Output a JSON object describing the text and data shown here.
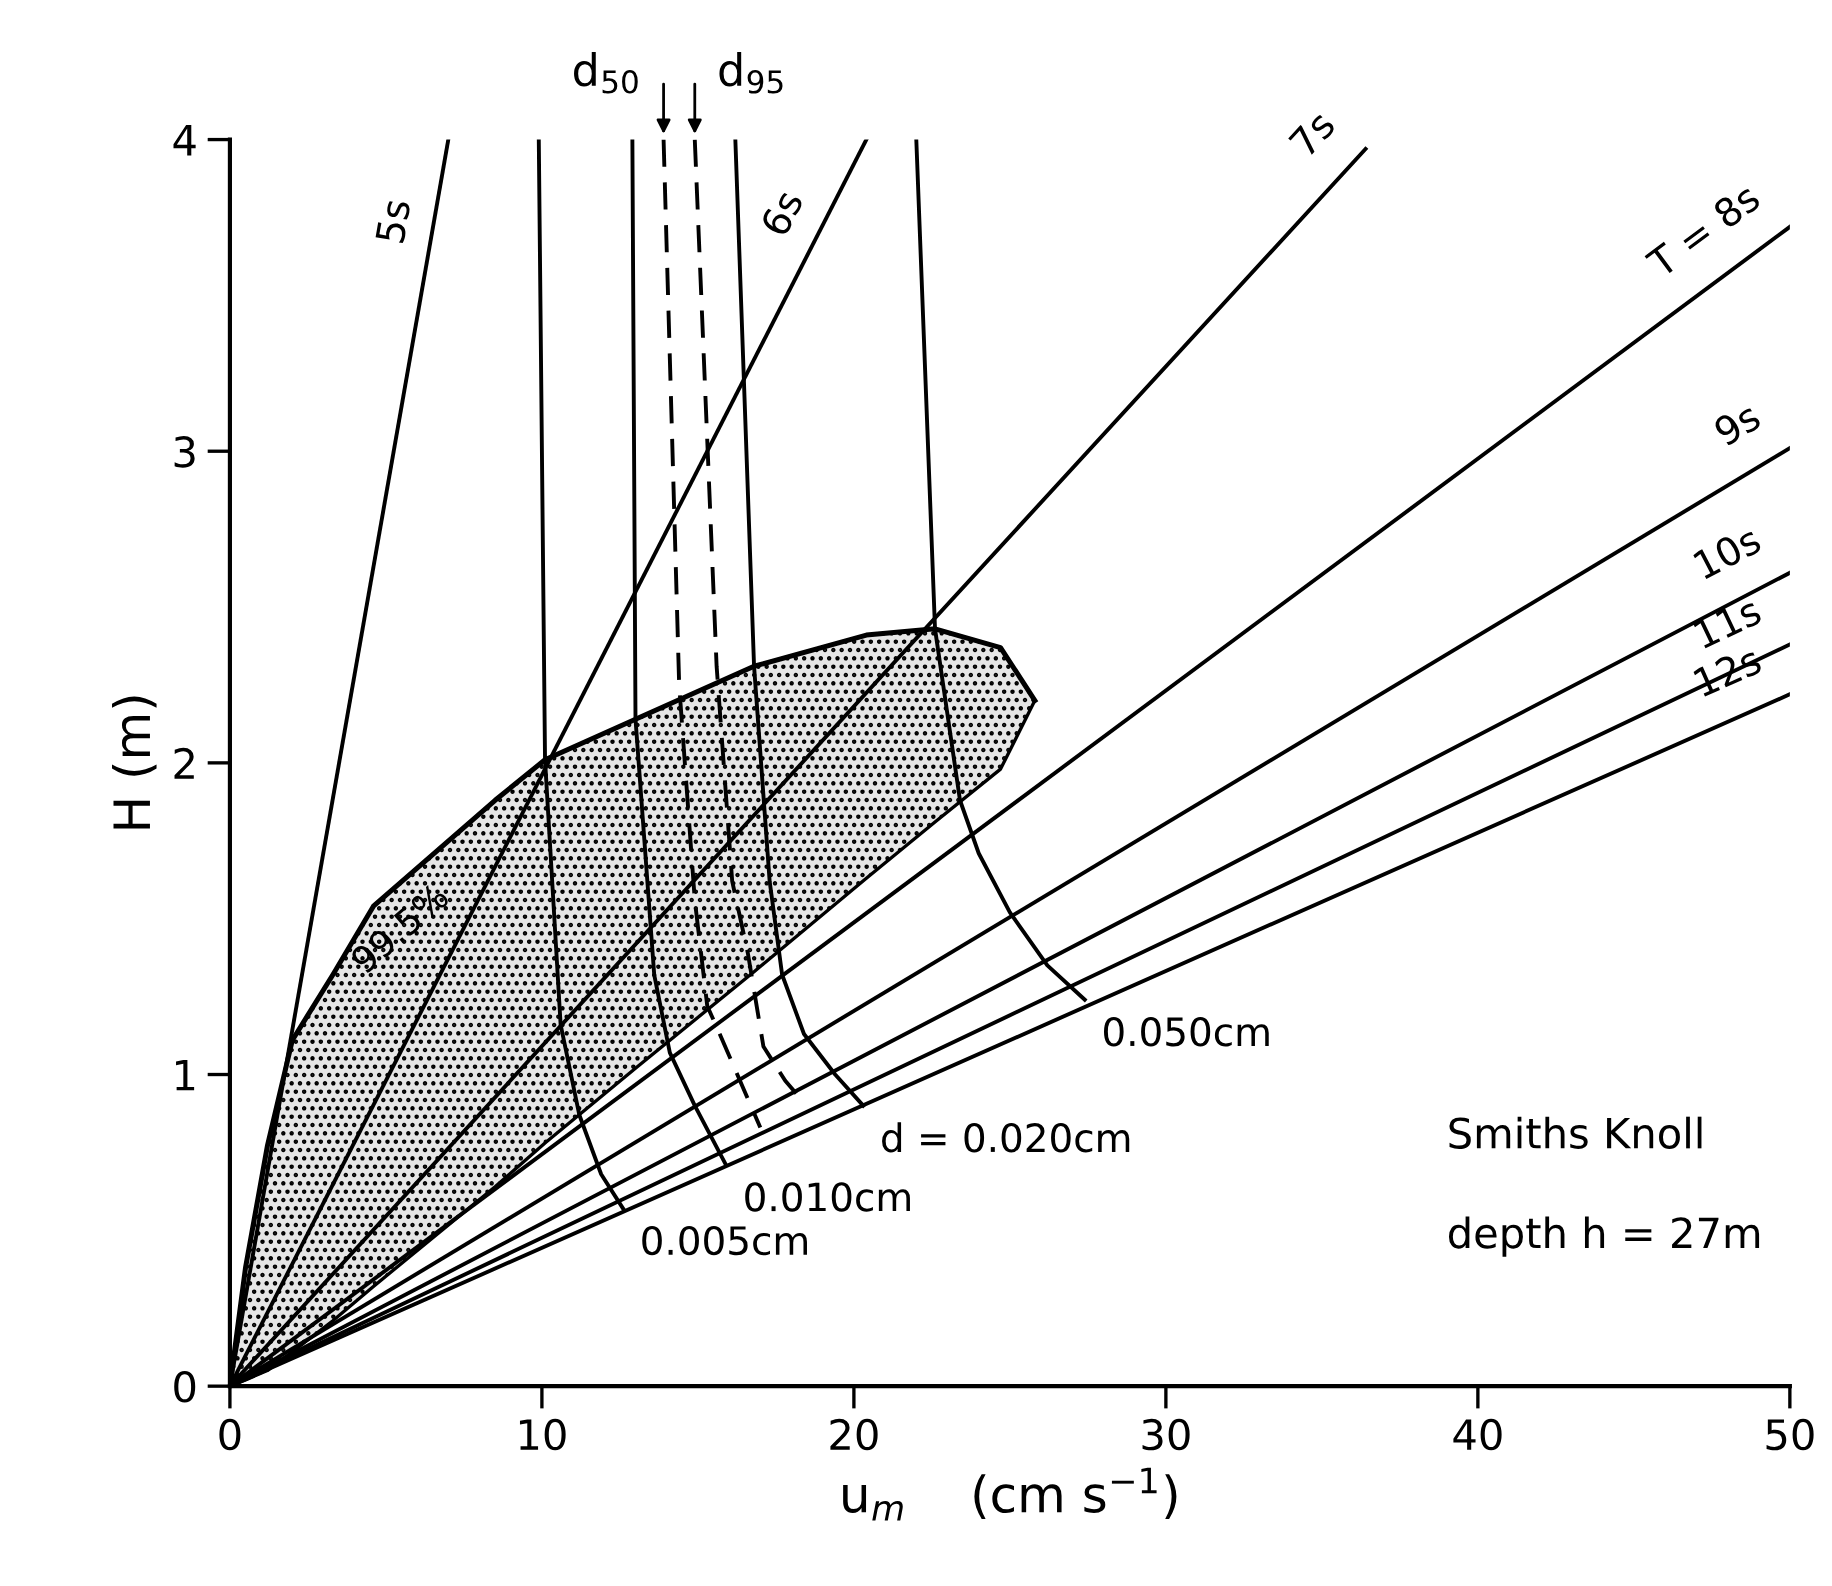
{
  "chart_data": {
    "type": "line",
    "xlabel": "u$_{m}$    (cm s$^{−1}$)",
    "ylabel": "H (m)",
    "xlim": [
      0,
      50
    ],
    "ylim": [
      0,
      4
    ],
    "xticks": [
      0,
      10,
      20,
      30,
      40,
      50
    ],
    "yticks": [
      0,
      1,
      2,
      3,
      4
    ],
    "grid": false,
    "legend": false,
    "marker": "none",
    "annotations": [
      "Smiths Knoll",
      "depth h = 27m"
    ],
    "series": [
      {
        "type": "line",
        "name": "99.5%",
        "color": "#000000",
        "line_style": "solid",
        "x": [
          0,
          0.5,
          1.2,
          2,
          3.3,
          4.6,
          8.5,
          10.1,
          13,
          16.8,
          20.4,
          22.6,
          24.7,
          25.8
        ],
        "values": [
          0,
          0.38,
          0.77,
          1.11,
          1.32,
          1.54,
          1.88,
          2.01,
          2.14,
          2.31,
          2.41,
          2.43,
          2.37,
          2.2
        ],
        "upper": [
          0,
          0.38,
          0.77,
          1.11,
          1.32,
          1.54,
          1.88,
          2.01,
          2.14,
          2.31,
          2.41,
          2.43,
          2.37,
          2.2
        ],
        "lower": [
          0,
          0.02,
          0.05,
          0.11,
          0.21,
          0.32,
          0.64,
          0.78,
          1.02,
          1.33,
          1.63,
          1.81,
          1.98,
          2.2
        ]
      },
      {
        "name": "5s",
        "color": "#000000",
        "line_style": "solid",
        "x": [
          0,
          7.0
        ],
        "values": [
          0,
          4
        ]
      },
      {
        "name": "6s",
        "color": "#000000",
        "line_style": "solid",
        "x": [
          0,
          20.4
        ],
        "values": [
          0,
          4
        ]
      },
      {
        "name": "7s",
        "color": "#000000",
        "line_style": "solid",
        "x": [
          0,
          36.4
        ],
        "values": [
          0,
          3.97
        ]
      },
      {
        "name": "T = 8s",
        "color": "#000000",
        "line_style": "solid",
        "x": [
          0,
          50
        ],
        "values": [
          0,
          3.72
        ]
      },
      {
        "name": "9s",
        "color": "#000000",
        "line_style": "solid",
        "x": [
          0,
          50
        ],
        "values": [
          0,
          3.01
        ]
      },
      {
        "name": "10s",
        "color": "#000000",
        "line_style": "solid",
        "x": [
          0,
          50
        ],
        "values": [
          0,
          2.61
        ]
      },
      {
        "name": "11s",
        "color": "#000000",
        "line_style": "solid",
        "x": [
          0,
          50
        ],
        "values": [
          0,
          2.38
        ]
      },
      {
        "name": "12s",
        "color": "#000000",
        "line_style": "solid",
        "x": [
          0,
          50
        ],
        "values": [
          0,
          2.22
        ]
      },
      {
        "name": "0.005cm",
        "color": "#000000",
        "line_style": "solid",
        "x": [
          9.9,
          10.1,
          10.6,
          11.2,
          11.9,
          12.6
        ],
        "values": [
          4,
          2.01,
          1.16,
          0.87,
          0.68,
          0.57
        ]
      },
      {
        "name": "0.010cm",
        "color": "#000000",
        "line_style": "solid",
        "x": [
          12.9,
          13.0,
          13.6,
          14.1,
          14.9,
          15.9
        ],
        "values": [
          4,
          2.14,
          1.32,
          1.07,
          0.9,
          0.71
        ]
      },
      {
        "name": "d$_{50}$",
        "color": "#000000",
        "line_style": "dashed",
        "x": [
          13.9,
          14.4,
          14.9,
          15.3,
          15.7,
          17.0
        ],
        "values": [
          4,
          2.25,
          1.56,
          1.22,
          1.13,
          0.83
        ]
      },
      {
        "name": "d$_{95}$",
        "color": "#000000",
        "line_style": "dashed",
        "x": [
          14.9,
          15.6,
          16.1,
          16.6,
          17.1,
          17.8,
          18.4
        ],
        "values": [
          4,
          2.31,
          1.62,
          1.39,
          1.09,
          0.98,
          0.91
        ]
      },
      {
        "name": "d = 0.020cm",
        "color": "#000000",
        "line_style": "solid",
        "x": [
          16.2,
          16.8,
          17.3,
          17.7,
          18.4,
          19.4,
          20.3
        ],
        "values": [
          4,
          2.31,
          1.62,
          1.32,
          1.13,
          1.0,
          0.9
        ]
      },
      {
        "name": "0.050cm",
        "color": "#000000",
        "line_style": "solid",
        "x": [
          22.0,
          22.6,
          23.4,
          24.0,
          25.0,
          26.2,
          27.4
        ],
        "values": [
          4,
          2.43,
          1.88,
          1.71,
          1.52,
          1.35,
          1.24
        ]
      }
    ]
  }
}
